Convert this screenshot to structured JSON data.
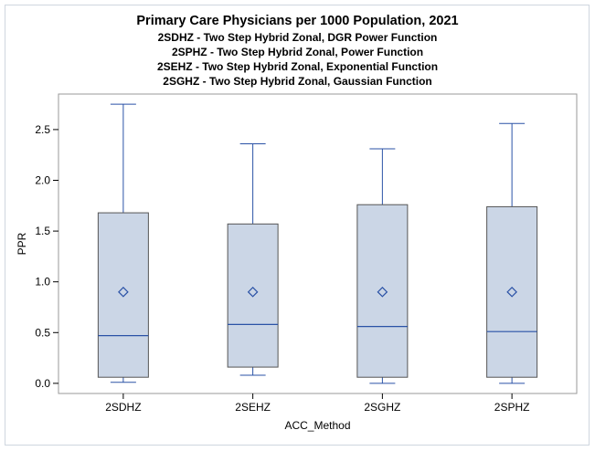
{
  "titles": {
    "title": "Primary Care Physicians per 1000 Population, 2021",
    "subtitles": [
      "2SDHZ - Two Step Hybrid Zonal, DGR Power Function",
      "2SPHZ - Two Step Hybrid Zonal, Power Function",
      "2SEHZ - Two Step Hybrid Zonal, Exponential Function",
      "2SGHZ - Two Step Hybrid Zonal, Gaussian Function"
    ]
  },
  "colors": {
    "box_fill": "#cbd6e6",
    "box_stroke": "#555555",
    "whisker": "#2a52a6",
    "median": "#2a52a6",
    "mean_marker": "#2a52a6",
    "frame": "#999999"
  },
  "chart_data": {
    "type": "box",
    "title": "Primary Care Physicians per 1000 Population, 2021",
    "xlabel": "ACC_Method",
    "ylabel": "PPR",
    "ylim": [
      -0.1,
      2.85
    ],
    "yticks": [
      0.0,
      0.5,
      1.0,
      1.5,
      2.0,
      2.5
    ],
    "ytick_labels": [
      "0.0",
      "0.5",
      "1.0",
      "1.5",
      "2.0",
      "2.5"
    ],
    "grid": false,
    "categories": [
      "2SDHZ",
      "2SEHZ",
      "2SGHZ",
      "2SPHZ"
    ],
    "boxes": [
      {
        "category": "2SDHZ",
        "min": 0.01,
        "q1": 0.06,
        "median": 0.47,
        "q3": 1.68,
        "max": 2.75,
        "mean": 0.9
      },
      {
        "category": "2SEHZ",
        "min": 0.08,
        "q1": 0.16,
        "median": 0.58,
        "q3": 1.57,
        "max": 2.36,
        "mean": 0.9
      },
      {
        "category": "2SGHZ",
        "min": 0.0,
        "q1": 0.06,
        "median": 0.56,
        "q3": 1.76,
        "max": 2.31,
        "mean": 0.9
      },
      {
        "category": "2SPHZ",
        "min": 0.0,
        "q1": 0.06,
        "median": 0.51,
        "q3": 1.74,
        "max": 2.56,
        "mean": 0.9
      }
    ]
  }
}
